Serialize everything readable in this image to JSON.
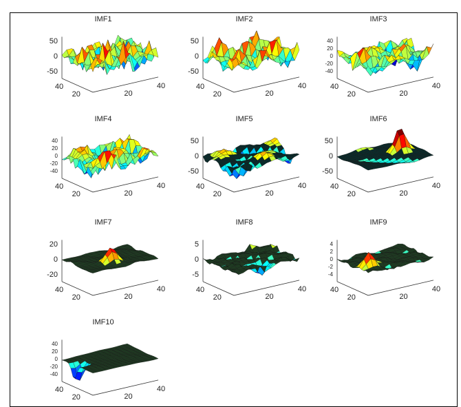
{
  "panels": [
    {
      "title": "IMF1",
      "z_labels": [
        "50",
        "0",
        "-50"
      ],
      "y_labels": [
        "40",
        "20"
      ],
      "x_labels": [
        "20",
        "40"
      ]
    },
    {
      "title": "IMF2",
      "z_labels": [
        "50",
        "0",
        "-50"
      ],
      "y_labels": [
        "40",
        "20"
      ],
      "x_labels": [
        "20",
        "40"
      ]
    },
    {
      "title": "IMF3",
      "z_labels": [
        "40",
        "20",
        "0",
        "-20",
        "-40"
      ],
      "y_labels": [
        "40",
        "20"
      ],
      "x_labels": [
        "20",
        "40"
      ]
    },
    {
      "title": "IMF4",
      "z_labels": [
        "40",
        "20",
        "0",
        "-20",
        "-40"
      ],
      "y_labels": [
        "40",
        "20"
      ],
      "x_labels": [
        "20",
        "40"
      ]
    },
    {
      "title": "IMF5",
      "z_labels": [
        "50",
        "0",
        "-50"
      ],
      "y_labels": [
        "40",
        "20"
      ],
      "x_labels": [
        "20",
        "40"
      ]
    },
    {
      "title": "IMF6",
      "z_labels": [
        "50",
        "0",
        "-50"
      ],
      "y_labels": [
        "40",
        "20"
      ],
      "x_labels": [
        "20",
        "40"
      ]
    },
    {
      "title": "IMF7",
      "z_labels": [
        "20",
        "0",
        "-20"
      ],
      "y_labels": [
        "40",
        "20"
      ],
      "x_labels": [
        "20",
        "40"
      ]
    },
    {
      "title": "IMF8",
      "z_labels": [
        "5",
        "0",
        "-5"
      ],
      "y_labels": [
        "40",
        "20"
      ],
      "x_labels": [
        "20",
        "40"
      ]
    },
    {
      "title": "IMF9",
      "z_labels": [
        "4",
        "2",
        "0",
        "-2",
        "-4"
      ],
      "y_labels": [
        "40",
        "20"
      ],
      "x_labels": [
        "20",
        "40"
      ]
    },
    {
      "title": "IMF10",
      "z_labels": [
        "40",
        "20",
        "0",
        "-20",
        "-40"
      ],
      "y_labels": [
        "40",
        "20"
      ],
      "x_labels": [
        "20",
        "40"
      ]
    }
  ]
}
